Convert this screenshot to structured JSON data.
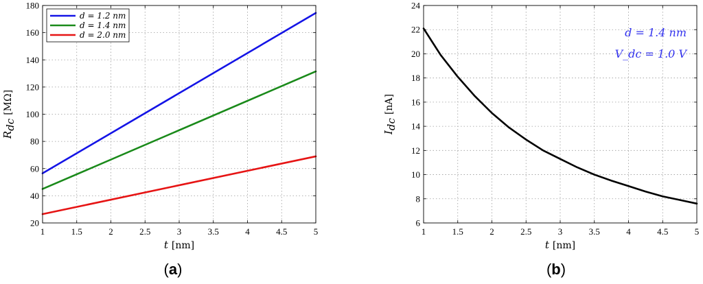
{
  "chart_data": [
    {
      "type": "line",
      "panel": "(a)",
      "panel_letter": "a",
      "xlabel": "t",
      "xunit": "[nm]",
      "ylabel": "R",
      "ysub": "dc",
      "yunit": "[MΩ]",
      "xlim": [
        1,
        5
      ],
      "ylim": [
        20,
        180
      ],
      "xticks": [
        1,
        1.5,
        2,
        2.5,
        3,
        3.5,
        4,
        4.5,
        5
      ],
      "xticklabels": [
        "1",
        "1.5",
        "2",
        "2.5",
        "3",
        "3.5",
        "4",
        "4.5",
        "5"
      ],
      "yticks": [
        20,
        40,
        60,
        80,
        100,
        120,
        140,
        160,
        180
      ],
      "yticklabels": [
        "20",
        "40",
        "60",
        "80",
        "100",
        "120",
        "140",
        "160",
        "180"
      ],
      "grid": true,
      "legend_position": "top-left",
      "series": [
        {
          "name": "d = 1.2 nm",
          "color": "#1414e6",
          "x": [
            1,
            5
          ],
          "y": [
            56.5,
            174.5
          ]
        },
        {
          "name": "d = 1.4 nm",
          "color": "#1a8a1a",
          "x": [
            1,
            5
          ],
          "y": [
            45,
            131.5
          ]
        },
        {
          "name": "d = 2.0 nm",
          "color": "#e61414",
          "x": [
            1,
            5
          ],
          "y": [
            26.5,
            69
          ]
        }
      ]
    },
    {
      "type": "line",
      "panel": "(b)",
      "panel_letter": "b",
      "xlabel": "t",
      "xunit": "[nm]",
      "ylabel": "I",
      "ysub": "dc",
      "yunit": "[nA]",
      "xlim": [
        1,
        5
      ],
      "ylim": [
        6,
        24
      ],
      "xticks": [
        1,
        1.5,
        2,
        2.5,
        3,
        3.5,
        4,
        4.5,
        5
      ],
      "xticklabels": [
        "1",
        "1.5",
        "2",
        "2.5",
        "3",
        "3.5",
        "4",
        "4.5",
        "5"
      ],
      "yticks": [
        6,
        8,
        10,
        12,
        14,
        16,
        18,
        20,
        22,
        24
      ],
      "yticklabels": [
        "6",
        "8",
        "10",
        "12",
        "14",
        "16",
        "18",
        "20",
        "22",
        "24"
      ],
      "grid": true,
      "annotations": [
        "d = 1.4 nm",
        "V_dc = 1.0 V"
      ],
      "annotation_color": "#3333ee",
      "series": [
        {
          "color": "#000000",
          "x": [
            1,
            1.25,
            1.5,
            1.75,
            2,
            2.25,
            2.5,
            2.75,
            3,
            3.25,
            3.5,
            3.75,
            4,
            4.25,
            4.5,
            4.75,
            5
          ],
          "y": [
            22.1,
            19.9,
            18.1,
            16.5,
            15.1,
            13.9,
            12.9,
            12.0,
            11.3,
            10.6,
            10.0,
            9.5,
            9.05,
            8.6,
            8.2,
            7.9,
            7.6
          ]
        }
      ]
    }
  ]
}
